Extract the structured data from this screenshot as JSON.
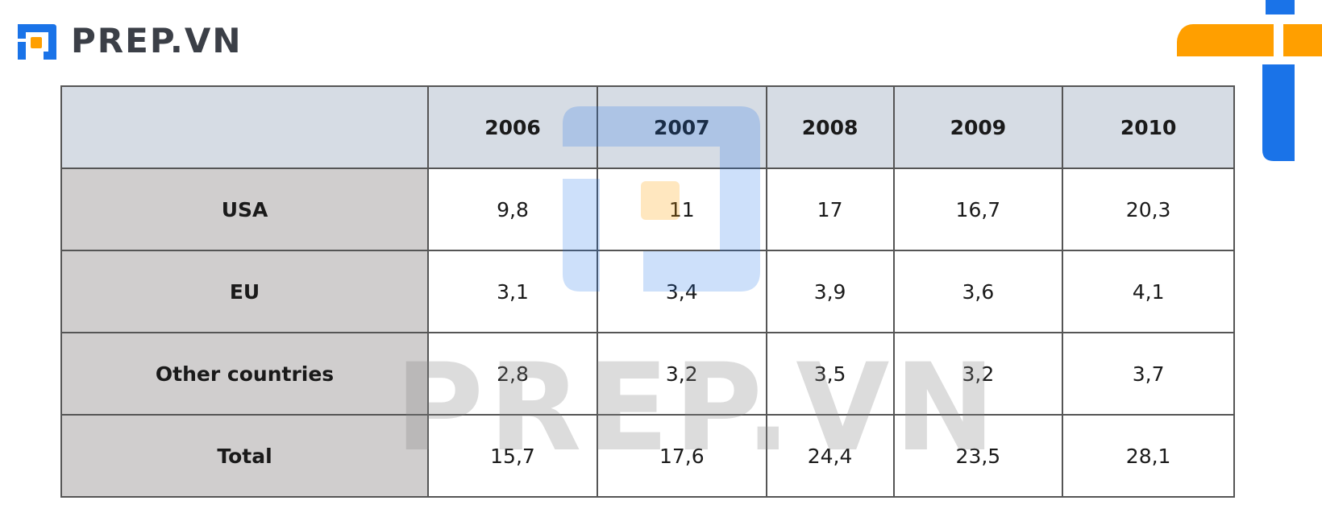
{
  "logo": {
    "text": "PREP.VN",
    "icon": "prep-logo-icon"
  },
  "watermark": {
    "text": "PREP.VN"
  },
  "colors": {
    "brand_blue": "#1a73e8",
    "brand_orange": "#ff9f00",
    "header_bg": "#d6dce4",
    "row_header_bg": "#d0cece",
    "border": "#555555"
  },
  "chart_data": {
    "type": "table",
    "columns": [
      "",
      "2006",
      "2007",
      "2008",
      "2009",
      "2010"
    ],
    "rows": [
      {
        "label": "USA",
        "values": [
          "9,8",
          "11",
          "17",
          "16,7",
          "20,3"
        ]
      },
      {
        "label": "EU",
        "values": [
          "3,1",
          "3,4",
          "3,9",
          "3,6",
          "4,1"
        ]
      },
      {
        "label": "Other countries",
        "values": [
          "2,8",
          "3,2",
          "3,5",
          "3,2",
          "3,7"
        ]
      },
      {
        "label": "Total",
        "values": [
          "15,7",
          "17,6",
          "24,4",
          "23,5",
          "28,1"
        ]
      }
    ]
  }
}
